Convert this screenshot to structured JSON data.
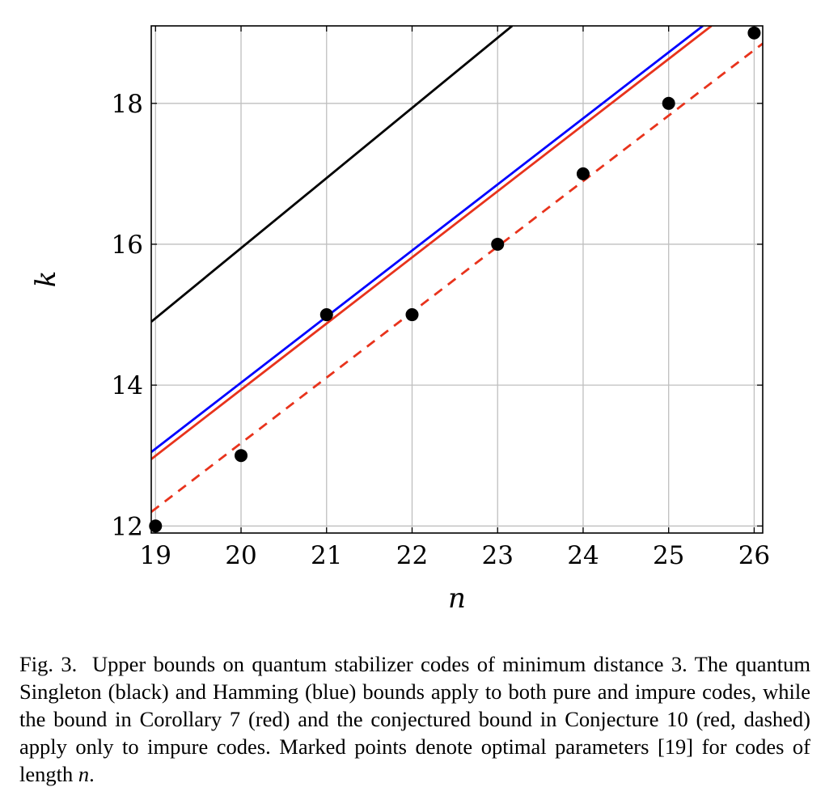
{
  "chart_data": {
    "type": "line",
    "xlabel": "n",
    "ylabel": "k",
    "xlim": [
      18.95,
      26.1
    ],
    "ylim": [
      11.9,
      19.1
    ],
    "x_ticks": [
      19,
      20,
      21,
      22,
      23,
      24,
      25,
      26
    ],
    "y_ticks": [
      12,
      14,
      16,
      18
    ],
    "grid": true,
    "legend": "none",
    "series": [
      {
        "color": "#000000",
        "style": "solid",
        "x": [
          18.95,
          23.17
        ],
        "y": [
          14.9,
          19.1
        ]
      },
      {
        "color": "#0000ff",
        "style": "solid",
        "x": [
          18.95,
          25.4
        ],
        "y": [
          13.05,
          19.1
        ]
      },
      {
        "color": "#e8331c",
        "style": "solid",
        "x": [
          18.95,
          25.5
        ],
        "y": [
          12.95,
          19.1
        ]
      },
      {
        "color": "#e8331c",
        "style": "dashed",
        "x": [
          18.95,
          26.1
        ],
        "y": [
          12.2,
          18.85
        ]
      }
    ],
    "points": {
      "color": "#000000",
      "x": [
        19,
        20,
        21,
        22,
        23,
        24,
        25,
        26
      ],
      "y": [
        12,
        13,
        15,
        15,
        16,
        17,
        18,
        19
      ]
    }
  },
  "caption": {
    "label": "Fig. 3.",
    "text": "Upper bounds on quantum stabilizer codes of minimum distance 3. The quantum Singleton (black) and Hamming (blue) bounds apply to both pure and impure codes, while the bound in Corollary 7 (red) and the conjectured bound in Conjecture 10 (red, dashed) apply only to impure codes. Marked points denote optimal parameters [19] for codes of length",
    "var": "n",
    "end": "."
  }
}
